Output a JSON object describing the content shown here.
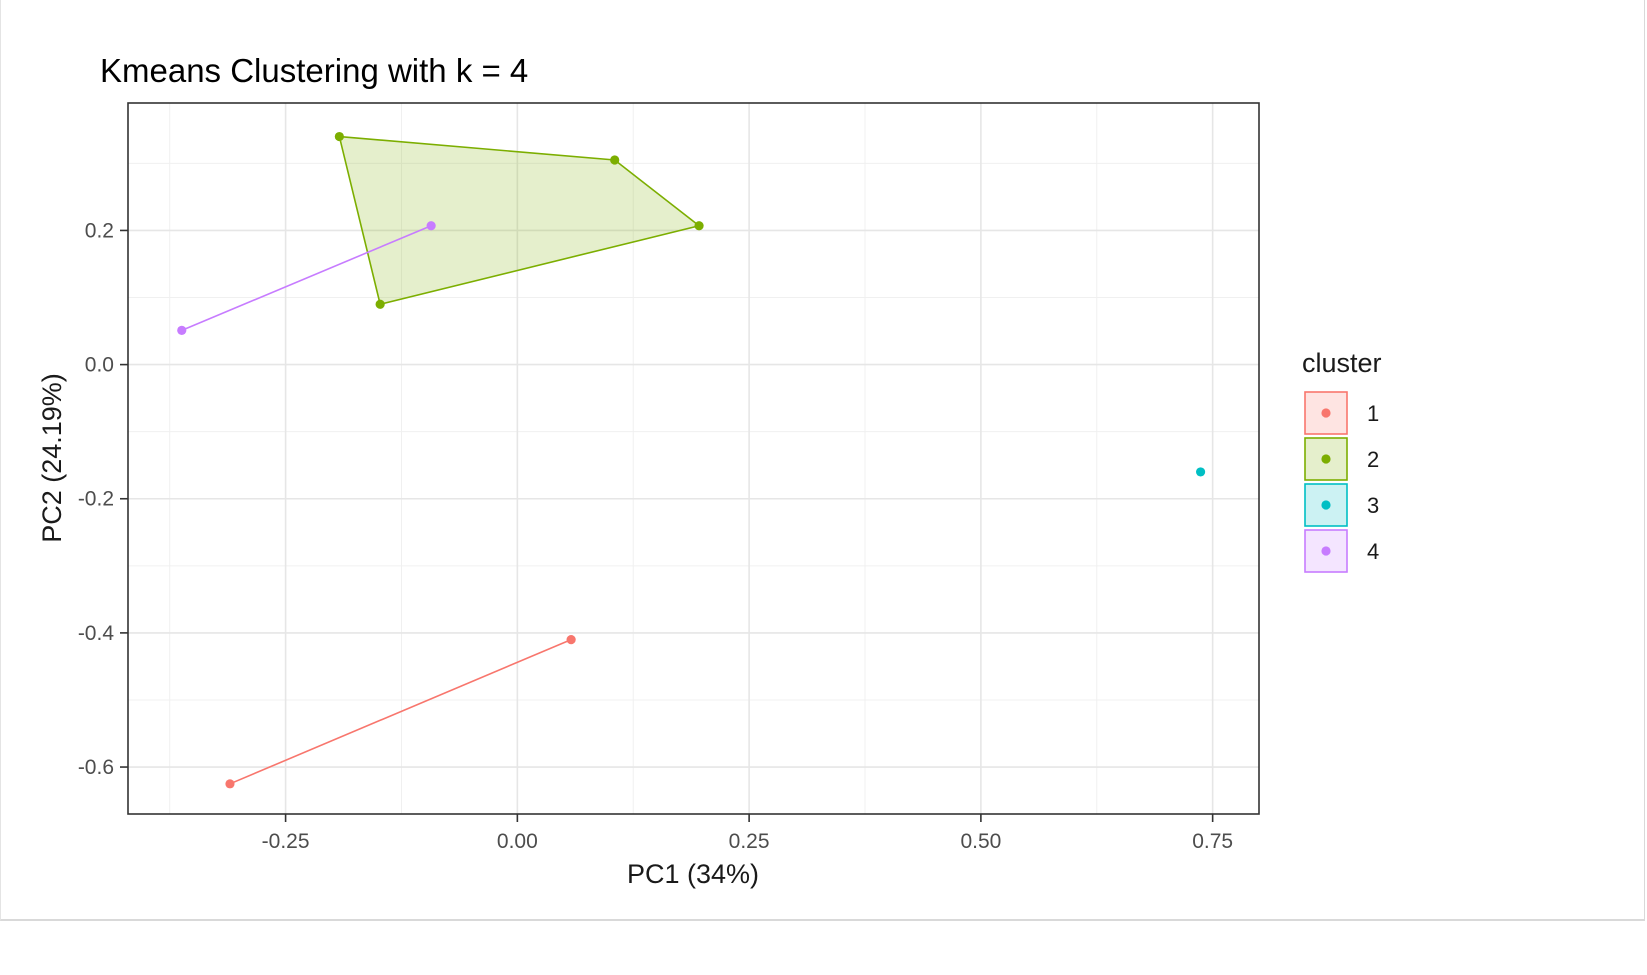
{
  "chart_data": {
    "type": "scatter",
    "title": "Kmeans Clustering with k = 4",
    "xlabel": "PC1 (34%)",
    "ylabel": "PC2 (24.19%)",
    "xlim": [
      -0.42,
      0.8
    ],
    "ylim": [
      -0.67,
      0.39
    ],
    "x_ticks": [
      -0.25,
      0.0,
      0.25,
      0.5,
      0.75
    ],
    "x_tick_labels": [
      "-0.25",
      "0.00",
      "0.25",
      "0.50",
      "0.75"
    ],
    "y_ticks": [
      -0.6,
      -0.4,
      -0.2,
      0.0,
      0.2
    ],
    "y_tick_labels": [
      "-0.6",
      "-0.4",
      "-0.2",
      "0.0",
      "0.2"
    ],
    "grid": true,
    "legend": {
      "title": "cluster",
      "position": "right",
      "entries": [
        "1",
        "2",
        "3",
        "4"
      ]
    },
    "series": [
      {
        "name": "1",
        "color": "#F8766D",
        "points": [
          [
            -0.31,
            -0.625
          ],
          [
            0.058,
            -0.41
          ]
        ],
        "hull": [
          [
            -0.31,
            -0.625
          ],
          [
            0.058,
            -0.41
          ]
        ]
      },
      {
        "name": "2",
        "color": "#7CAE00",
        "points": [
          [
            -0.192,
            0.34
          ],
          [
            0.105,
            0.305
          ],
          [
            0.196,
            0.207
          ],
          [
            -0.148,
            0.09
          ]
        ],
        "hull": [
          [
            -0.192,
            0.34
          ],
          [
            0.105,
            0.305
          ],
          [
            0.196,
            0.207
          ],
          [
            -0.148,
            0.09
          ]
        ]
      },
      {
        "name": "3",
        "color": "#00BFC4",
        "points": [
          [
            0.737,
            -0.16
          ]
        ],
        "hull": [
          [
            0.737,
            -0.16
          ]
        ]
      },
      {
        "name": "4",
        "color": "#C77CFF",
        "points": [
          [
            -0.362,
            0.051
          ],
          [
            -0.093,
            0.207
          ]
        ],
        "hull": [
          [
            -0.362,
            0.051
          ],
          [
            -0.093,
            0.207
          ]
        ]
      }
    ]
  }
}
